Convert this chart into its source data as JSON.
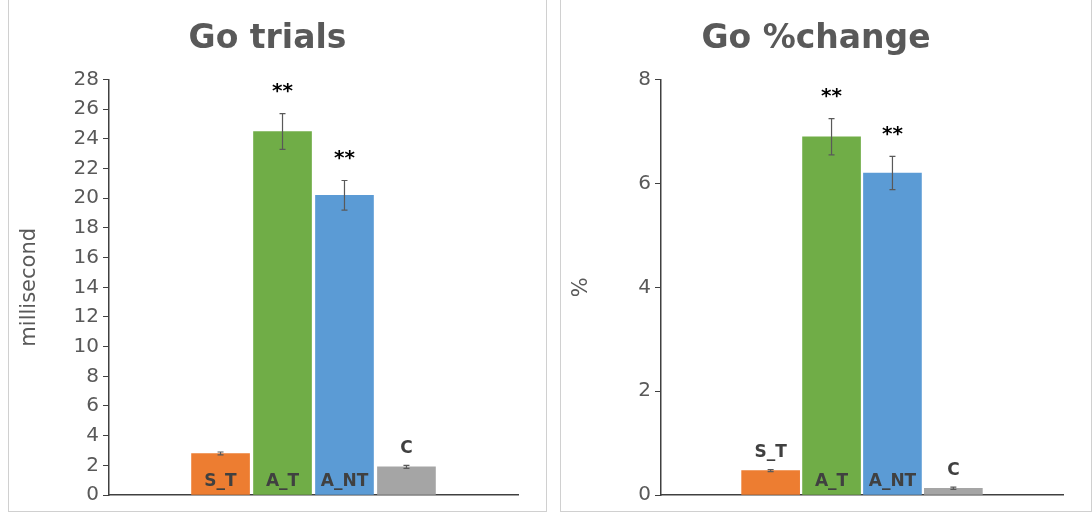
{
  "chart_data": [
    {
      "type": "bar",
      "title": "Go trials",
      "ylabel": "millisecond",
      "categories": [
        "S_T",
        "A_T",
        "A_NT",
        "C"
      ],
      "values": [
        2.8,
        24.5,
        20.2,
        1.9
      ],
      "colors": [
        "#ed7d31",
        "#70ad47",
        "#5b9bd5",
        "#a5a5a5"
      ],
      "errors": [
        0.1,
        1.2,
        1.0,
        0.1
      ],
      "ylim": [
        0,
        28
      ],
      "yticks": [
        0,
        2,
        4,
        6,
        8,
        10,
        12,
        14,
        16,
        18,
        20,
        22,
        24,
        26,
        28
      ],
      "annotations": [
        {
          "text": "**",
          "x": "A_T",
          "y": 24.5
        },
        {
          "text": "**",
          "x": "A_NT",
          "y": 20.2
        }
      ]
    },
    {
      "type": "bar",
      "title": "Go %change",
      "ylabel": "%",
      "categories": [
        "S_T",
        "A_T",
        "A_NT",
        "C"
      ],
      "values": [
        0.47,
        6.9,
        6.2,
        0.13
      ],
      "colors": [
        "#ed7d31",
        "#70ad47",
        "#5b9bd5",
        "#a5a5a5"
      ],
      "errors": [
        0.02,
        0.35,
        0.32,
        0.02
      ],
      "ylim": [
        0,
        8
      ],
      "yticks": [
        0,
        2,
        4,
        6,
        8
      ],
      "annotations": [
        {
          "text": "**",
          "x": "A_T",
          "y": 6.9
        },
        {
          "text": "**",
          "x": "A_NT",
          "y": 6.2
        }
      ]
    }
  ]
}
